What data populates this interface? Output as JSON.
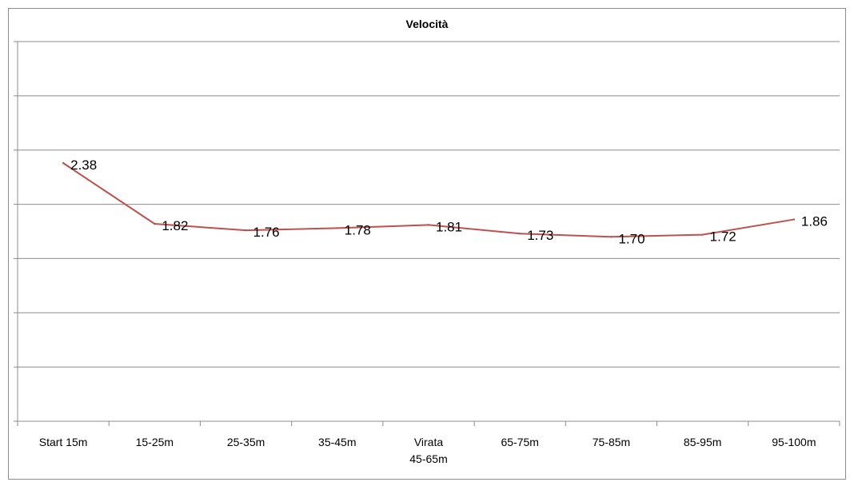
{
  "chart_data": {
    "type": "line",
    "title": "Velocità",
    "categories": [
      "Start 15m",
      "15-25m",
      "25-35m",
      "35-45m",
      "Virata 45-65m",
      "65-75m",
      "75-85m",
      "85-95m",
      "95-100m"
    ],
    "category_lines": [
      [
        "Start 15m"
      ],
      [
        "15-25m"
      ],
      [
        "25-35m"
      ],
      [
        "35-45m"
      ],
      [
        "Virata",
        "45-65m"
      ],
      [
        "65-75m"
      ],
      [
        "75-85m"
      ],
      [
        "85-95m"
      ],
      [
        "95-100m"
      ]
    ],
    "series": [
      {
        "values": [
          2.38,
          1.82,
          1.76,
          1.78,
          1.81,
          1.73,
          1.7,
          1.72,
          1.86
        ],
        "color": "#c0504d"
      }
    ],
    "data_labels": [
      "2.38",
      "1.82",
      "1.76",
      "1.78",
      "1.81",
      "1.73",
      "1.70",
      "1.72",
      "1.86"
    ],
    "ylim": [
      0,
      3.5
    ],
    "y_gridline_step": 0.5,
    "y_tick_labels_visible": false,
    "grid": true,
    "legend": "none",
    "colors": {
      "gridline": "#8c8c8c",
      "axis": "#8c8c8c",
      "series": "#c0504d"
    }
  }
}
